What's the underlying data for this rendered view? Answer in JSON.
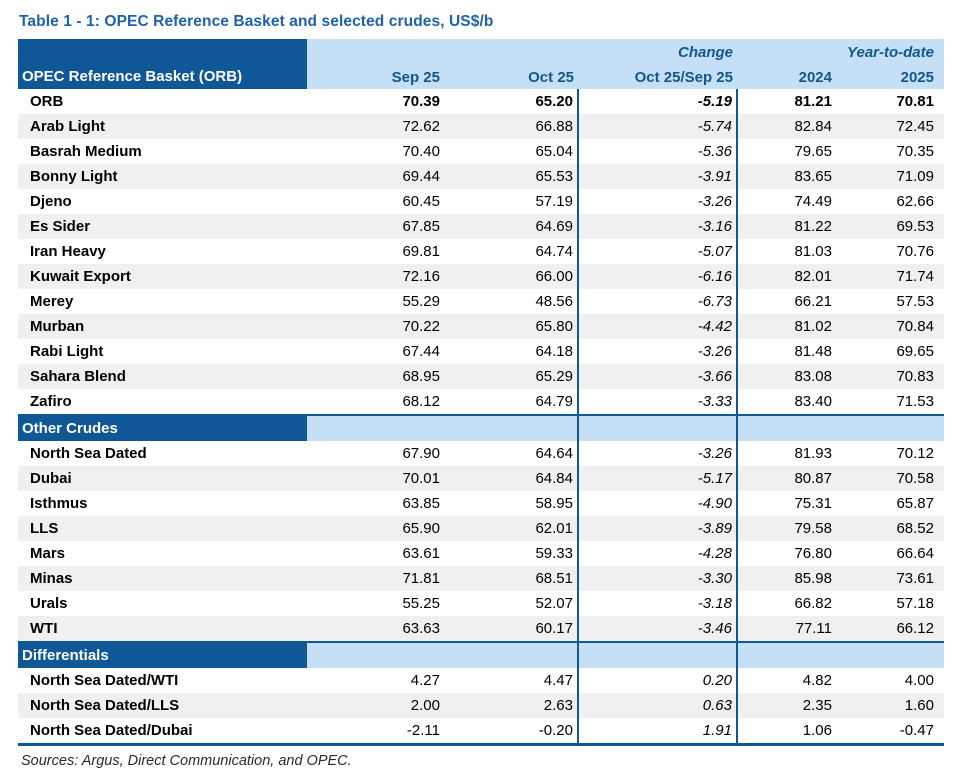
{
  "title": "Table 1 - 1: OPEC Reference Basket and selected crudes, US$/b",
  "table": {
    "corner_header": "OPEC Reference Basket (ORB)",
    "group_headers": {
      "change": "Change",
      "ytd": "Year-to-date"
    },
    "columns": [
      "Sep 25",
      "Oct 25",
      "Oct 25/Sep 25",
      "2024",
      "2025"
    ],
    "sections": [
      {
        "name": null,
        "rows": [
          {
            "label": "ORB",
            "bold": true,
            "values": [
              "70.39",
              "65.20",
              "-5.19",
              "81.21",
              "70.81"
            ]
          },
          {
            "label": "Arab Light",
            "bold": false,
            "values": [
              "72.62",
              "66.88",
              "-5.74",
              "82.84",
              "72.45"
            ]
          },
          {
            "label": "Basrah Medium",
            "bold": false,
            "values": [
              "70.40",
              "65.04",
              "-5.36",
              "79.65",
              "70.35"
            ]
          },
          {
            "label": "Bonny Light",
            "bold": false,
            "values": [
              "69.44",
              "65.53",
              "-3.91",
              "83.65",
              "71.09"
            ]
          },
          {
            "label": "Djeno",
            "bold": false,
            "values": [
              "60.45",
              "57.19",
              "-3.26",
              "74.49",
              "62.66"
            ]
          },
          {
            "label": "Es Sider",
            "bold": false,
            "values": [
              "67.85",
              "64.69",
              "-3.16",
              "81.22",
              "69.53"
            ]
          },
          {
            "label": "Iran Heavy",
            "bold": false,
            "values": [
              "69.81",
              "64.74",
              "-5.07",
              "81.03",
              "70.76"
            ]
          },
          {
            "label": "Kuwait Export",
            "bold": false,
            "values": [
              "72.16",
              "66.00",
              "-6.16",
              "82.01",
              "71.74"
            ]
          },
          {
            "label": "Merey",
            "bold": false,
            "values": [
              "55.29",
              "48.56",
              "-6.73",
              "66.21",
              "57.53"
            ]
          },
          {
            "label": "Murban",
            "bold": false,
            "values": [
              "70.22",
              "65.80",
              "-4.42",
              "81.02",
              "70.84"
            ]
          },
          {
            "label": "Rabi Light",
            "bold": false,
            "values": [
              "67.44",
              "64.18",
              "-3.26",
              "81.48",
              "69.65"
            ]
          },
          {
            "label": "Sahara Blend",
            "bold": false,
            "values": [
              "68.95",
              "65.29",
              "-3.66",
              "83.08",
              "70.83"
            ]
          },
          {
            "label": "Zafiro",
            "bold": false,
            "values": [
              "68.12",
              "64.79",
              "-3.33",
              "83.40",
              "71.53"
            ]
          }
        ]
      },
      {
        "name": "Other Crudes",
        "rows": [
          {
            "label": "North Sea Dated",
            "bold": false,
            "values": [
              "67.90",
              "64.64",
              "-3.26",
              "81.93",
              "70.12"
            ]
          },
          {
            "label": "Dubai",
            "bold": false,
            "values": [
              "70.01",
              "64.84",
              "-5.17",
              "80.87",
              "70.58"
            ]
          },
          {
            "label": "Isthmus",
            "bold": false,
            "values": [
              "63.85",
              "58.95",
              "-4.90",
              "75.31",
              "65.87"
            ]
          },
          {
            "label": "LLS",
            "bold": false,
            "values": [
              "65.90",
              "62.01",
              "-3.89",
              "79.58",
              "68.52"
            ]
          },
          {
            "label": "Mars",
            "bold": false,
            "values": [
              "63.61",
              "59.33",
              "-4.28",
              "76.80",
              "66.64"
            ]
          },
          {
            "label": "Minas",
            "bold": false,
            "values": [
              "71.81",
              "68.51",
              "-3.30",
              "85.98",
              "73.61"
            ]
          },
          {
            "label": "Urals",
            "bold": false,
            "values": [
              "55.25",
              "52.07",
              "-3.18",
              "66.82",
              "57.18"
            ]
          },
          {
            "label": "WTI",
            "bold": false,
            "values": [
              "63.63",
              "60.17",
              "-3.46",
              "77.11",
              "66.12"
            ]
          }
        ]
      },
      {
        "name": "Differentials",
        "rows": [
          {
            "label": "North Sea Dated/WTI",
            "bold": false,
            "values": [
              "4.27",
              "4.47",
              "0.20",
              "4.82",
              "4.00"
            ]
          },
          {
            "label": "North Sea Dated/LLS",
            "bold": false,
            "values": [
              "2.00",
              "2.63",
              "0.63",
              "2.35",
              "1.60"
            ]
          },
          {
            "label": "North Sea Dated/Dubai",
            "bold": false,
            "values": [
              "-2.11",
              "-0.20",
              "1.91",
              "1.06",
              "-0.47"
            ]
          }
        ]
      }
    ]
  },
  "footer": {
    "sources": "Sources:  Argus, Direct Communication, and OPEC."
  },
  "colors": {
    "header_dark_blue": "#0f5796",
    "header_light_blue": "#c5e0f6",
    "title_blue": "#1c62ae",
    "header_text_blue": "#12568f",
    "alt_row_gray": "#f0f0f0",
    "border_blue": "#0f5796"
  }
}
